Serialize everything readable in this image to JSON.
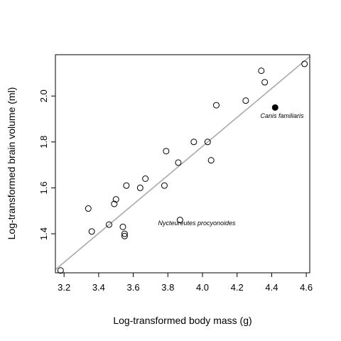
{
  "chart_data": {
    "type": "scatter",
    "title": "",
    "xlabel": "Log-transformed body mass (g)",
    "ylabel": "Log-transformed brain volume (ml)",
    "xlim": [
      3.15,
      4.62
    ],
    "ylim": [
      1.23,
      2.18
    ],
    "x_ticks": [
      "3.2",
      "3.4",
      "3.6",
      "3.8",
      "4.0",
      "4.2",
      "4.4",
      "4.6"
    ],
    "y_ticks": [
      "1.4",
      "1.6",
      "1.8",
      "2.0"
    ],
    "grid": false,
    "points": [
      {
        "x": 3.18,
        "y": 1.24
      },
      {
        "x": 3.34,
        "y": 1.51
      },
      {
        "x": 3.36,
        "y": 1.41
      },
      {
        "x": 3.46,
        "y": 1.44
      },
      {
        "x": 3.49,
        "y": 1.53
      },
      {
        "x": 3.5,
        "y": 1.55
      },
      {
        "x": 3.54,
        "y": 1.43
      },
      {
        "x": 3.55,
        "y": 1.4
      },
      {
        "x": 3.55,
        "y": 1.39
      },
      {
        "x": 3.56,
        "y": 1.61
      },
      {
        "x": 3.64,
        "y": 1.6
      },
      {
        "x": 3.67,
        "y": 1.64
      },
      {
        "x": 3.78,
        "y": 1.61
      },
      {
        "x": 3.79,
        "y": 1.76
      },
      {
        "x": 3.86,
        "y": 1.71
      },
      {
        "x": 3.87,
        "y": 1.46
      },
      {
        "x": 3.95,
        "y": 1.8
      },
      {
        "x": 4.03,
        "y": 1.8
      },
      {
        "x": 4.05,
        "y": 1.72
      },
      {
        "x": 4.08,
        "y": 1.96
      },
      {
        "x": 4.25,
        "y": 1.98
      },
      {
        "x": 4.34,
        "y": 2.11
      },
      {
        "x": 4.36,
        "y": 2.06
      },
      {
        "x": 4.59,
        "y": 2.14
      }
    ],
    "highlight_point": {
      "x": 4.42,
      "y": 1.95,
      "label": "Canis familiaris"
    },
    "annotations": [
      {
        "text": "Nycteureutes procyonoides",
        "x": 3.87,
        "y": 1.46
      },
      {
        "text": "Canis familiaris",
        "x": 4.42,
        "y": 1.95
      }
    ],
    "fit_line": {
      "x": [
        3.15,
        4.62
      ],
      "y": [
        1.244,
        2.172
      ],
      "color": "#aaaaaa"
    }
  }
}
